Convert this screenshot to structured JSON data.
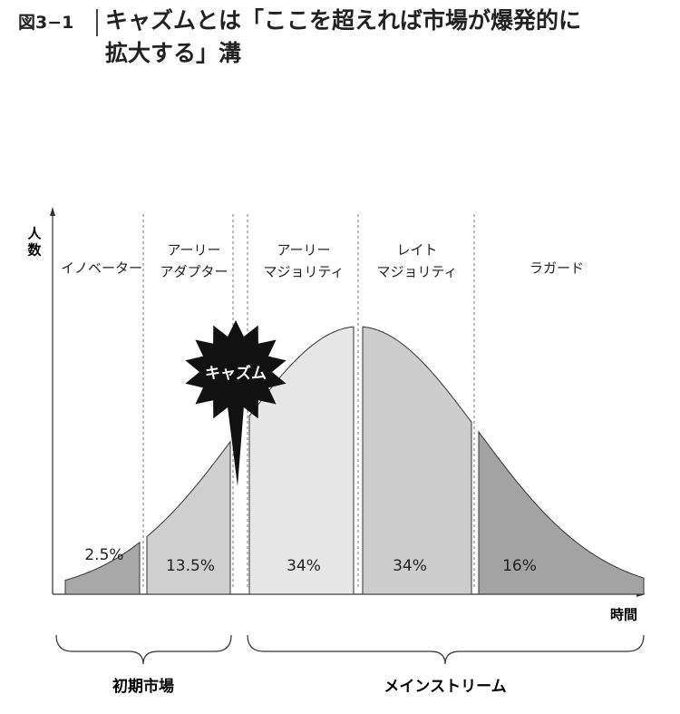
{
  "header": {
    "figure_label": "図3−1",
    "title_lines": [
      "キャズムとは「ここを超えれば市場が爆発的に",
      "拡大する」溝"
    ]
  },
  "axes": {
    "y_label": "人数",
    "x_label": "時間"
  },
  "segments": [
    {
      "label_lines": [
        "イノベーター"
      ],
      "share": "2.5%"
    },
    {
      "label_lines": [
        "アーリー",
        "アダプター"
      ],
      "share": "13.5%"
    },
    {
      "label_lines": [
        "アーリー",
        "マジョリティ"
      ],
      "share": "34%"
    },
    {
      "label_lines": [
        "レイト",
        "マジョリティ"
      ],
      "share": "34%"
    },
    {
      "label_lines": [
        "ラガード"
      ],
      "share": "16%"
    }
  ],
  "chasm": "キャズム",
  "groups": [
    "初期市場",
    "メインストリーム"
  ]
}
